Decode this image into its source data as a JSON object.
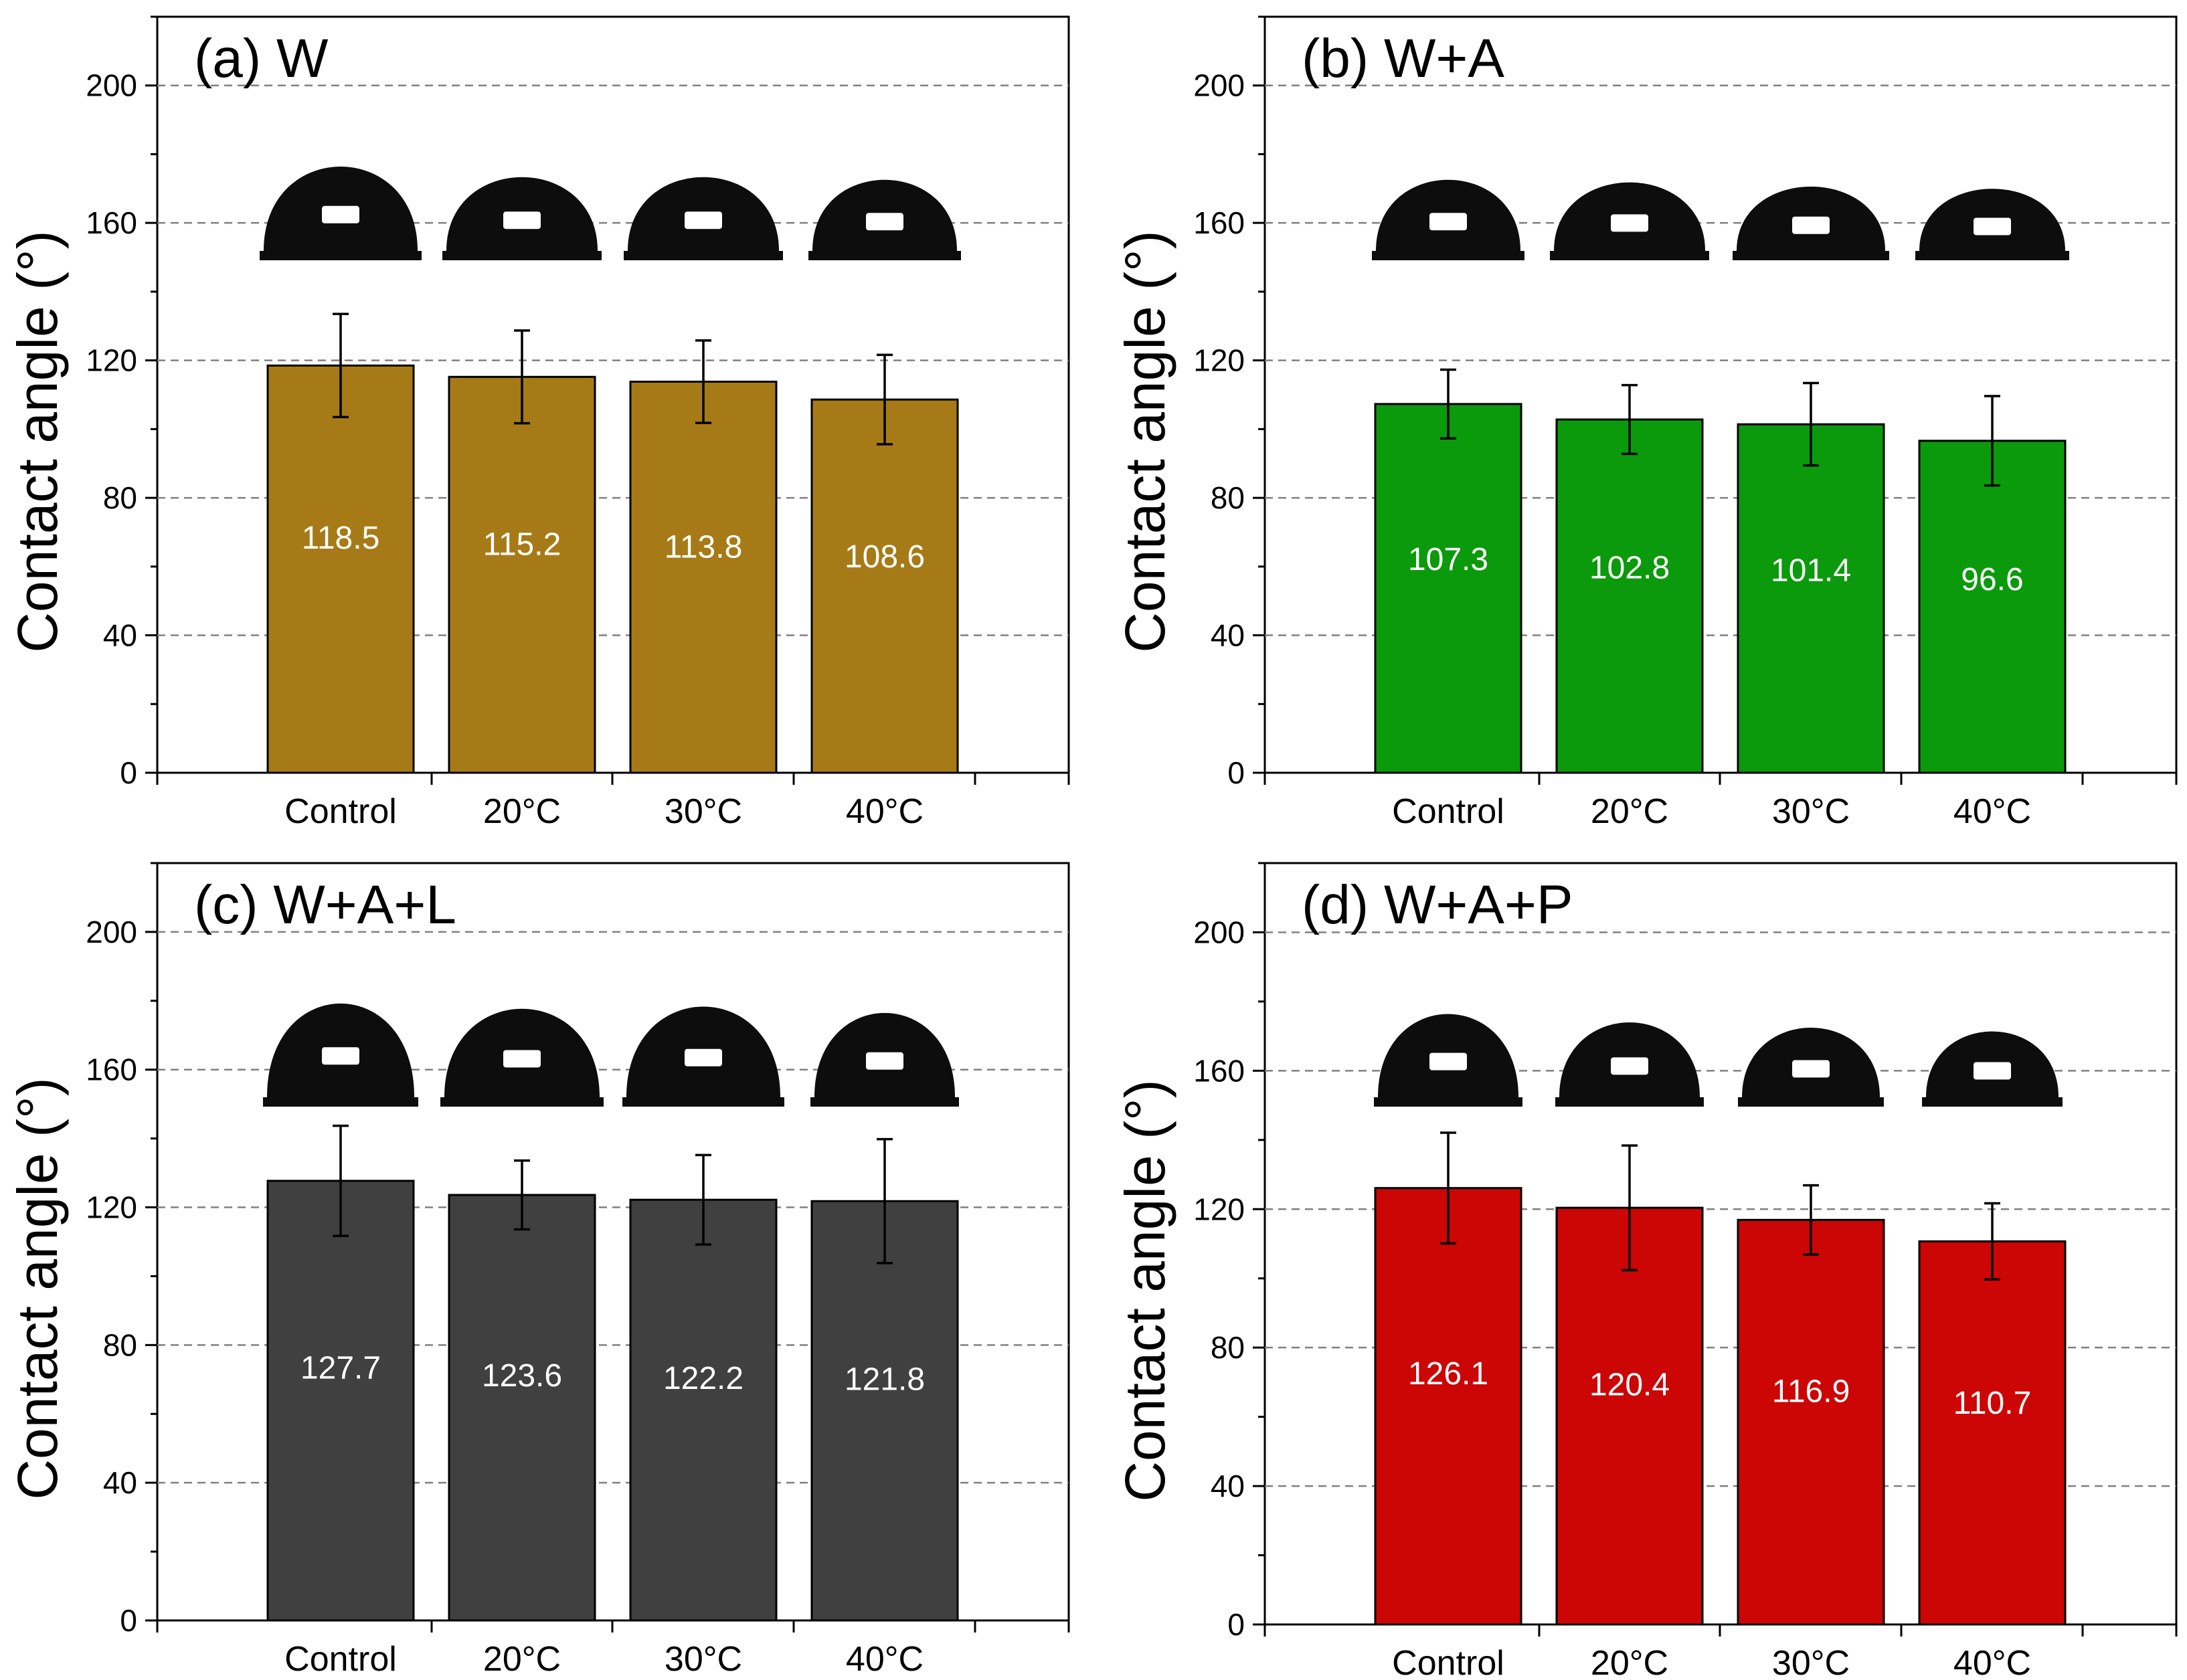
{
  "figure": {
    "colors": {
      "bar_fill": [
        "#a67b17",
        "#0b9a0b",
        "#404040",
        "#cc0505"
      ],
      "bar_stroke": "#000000",
      "value_label": "#ffffff",
      "grid": "#808080",
      "axis": "#000000",
      "droplet": "#0d0d0d",
      "droplet_highlight": "#ffffff"
    }
  },
  "chart_data": [
    {
      "type": "bar",
      "panel": "a",
      "title": "(a) W",
      "xlabel": "",
      "ylabel": "Contact angle (°)",
      "ylim": [
        0,
        220
      ],
      "yticks": [
        0,
        40,
        80,
        120,
        160,
        200
      ],
      "grid": true,
      "categories": [
        "Control",
        "20°C",
        "30°C",
        "40°C"
      ],
      "values": [
        118.5,
        115.2,
        113.8,
        108.6
      ],
      "value_labels": [
        "118.5",
        "115.2",
        "113.8",
        "108.6"
      ],
      "error_bars": [
        15.0,
        13.5,
        12.0,
        13.0
      ],
      "droplet_images": [
        "water-droplet-control",
        "water-droplet-20C",
        "water-droplet-30C",
        "water-droplet-40C"
      ]
    },
    {
      "type": "bar",
      "panel": "b",
      "title": "(b) W+A",
      "xlabel": "",
      "ylabel": "Contact angle (°)",
      "ylim": [
        0,
        220
      ],
      "yticks": [
        0,
        40,
        80,
        120,
        160,
        200
      ],
      "grid": true,
      "categories": [
        "Control",
        "20°C",
        "30°C",
        "40°C"
      ],
      "values": [
        107.3,
        102.8,
        101.4,
        96.6
      ],
      "value_labels": [
        "107.3",
        "102.8",
        "101.4",
        "96.6"
      ],
      "error_bars": [
        10.0,
        10.0,
        12.0,
        13.0
      ],
      "droplet_images": [
        "water-droplet-control",
        "water-droplet-20C",
        "water-droplet-30C",
        "water-droplet-40C"
      ]
    },
    {
      "type": "bar",
      "panel": "c",
      "title": "(c) W+A+L",
      "xlabel": "",
      "ylabel": "Contact angle (°)",
      "ylim": [
        0,
        220
      ],
      "yticks": [
        0,
        40,
        80,
        120,
        160,
        200
      ],
      "grid": true,
      "categories": [
        "Control",
        "20°C",
        "30°C",
        "40°C"
      ],
      "values": [
        127.7,
        123.6,
        122.2,
        121.8
      ],
      "value_labels": [
        "127.7",
        "123.6",
        "122.2",
        "121.8"
      ],
      "error_bars": [
        16.0,
        10.0,
        13.0,
        18.0
      ],
      "droplet_images": [
        "water-droplet-control",
        "water-droplet-20C",
        "water-droplet-30C",
        "water-droplet-40C"
      ]
    },
    {
      "type": "bar",
      "panel": "d",
      "title": "(d) W+A+P",
      "xlabel": "",
      "ylabel": "Contact angle (°)",
      "ylim": [
        0,
        220
      ],
      "yticks": [
        0,
        40,
        80,
        120,
        160,
        200
      ],
      "grid": true,
      "categories": [
        "Control",
        "20°C",
        "30°C",
        "40°C"
      ],
      "values": [
        126.1,
        120.4,
        116.9,
        110.7
      ],
      "value_labels": [
        "126.1",
        "120.4",
        "116.9",
        "110.7"
      ],
      "error_bars": [
        16.0,
        18.0,
        10.0,
        11.0
      ],
      "droplet_images": [
        "water-droplet-control",
        "water-droplet-20C",
        "water-droplet-30C",
        "water-droplet-40C"
      ]
    }
  ]
}
